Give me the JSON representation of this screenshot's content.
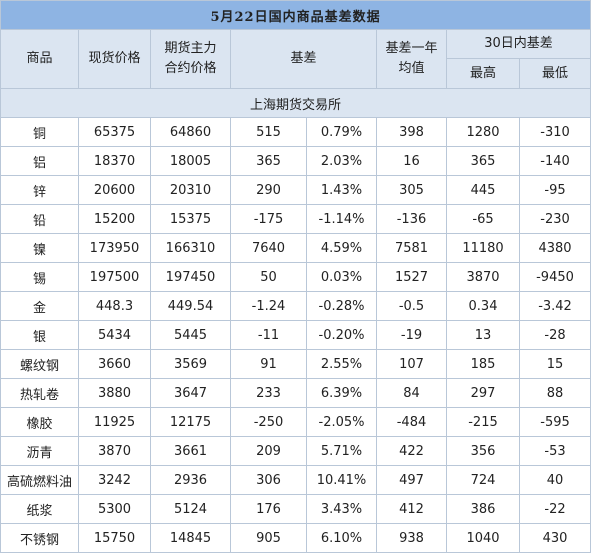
{
  "title": "5月22日国内商品基差数据",
  "headers": {
    "commodity": "商品",
    "spot_price": "现货价格",
    "futures_price_line1": "期货主力",
    "futures_price_line2": "合约价格",
    "basis": "基差",
    "basis_year_line1": "基差一年",
    "basis_year_line2": "均值",
    "range30": "30日内基差",
    "high": "最高",
    "low": "最低"
  },
  "exchange": "上海期货交易所",
  "colors": {
    "title_bg": "#8eb4e3",
    "header_bg": "#dbe5f1",
    "positive": "#e0443e",
    "negative": "#6cbe3c"
  },
  "rows": [
    {
      "name": "铜",
      "spot": "65375",
      "futures": "64860",
      "basis": "515",
      "basis_pct": "0.79%",
      "year_avg": "398",
      "high": "1280",
      "low": "-310",
      "sign": "pos"
    },
    {
      "name": "铝",
      "spot": "18370",
      "futures": "18005",
      "basis": "365",
      "basis_pct": "2.03%",
      "year_avg": "16",
      "high": "365",
      "low": "-140",
      "sign": "pos"
    },
    {
      "name": "锌",
      "spot": "20600",
      "futures": "20310",
      "basis": "290",
      "basis_pct": "1.43%",
      "year_avg": "305",
      "high": "445",
      "low": "-95",
      "sign": "pos"
    },
    {
      "name": "铅",
      "spot": "15200",
      "futures": "15375",
      "basis": "-175",
      "basis_pct": "-1.14%",
      "year_avg": "-136",
      "high": "-65",
      "low": "-230",
      "sign": "neg"
    },
    {
      "name": "镍",
      "spot": "173950",
      "futures": "166310",
      "basis": "7640",
      "basis_pct": "4.59%",
      "year_avg": "7581",
      "high": "11180",
      "low": "4380",
      "sign": "pos"
    },
    {
      "name": "锡",
      "spot": "197500",
      "futures": "197450",
      "basis": "50",
      "basis_pct": "0.03%",
      "year_avg": "1527",
      "high": "3870",
      "low": "-9450",
      "sign": "pos"
    },
    {
      "name": "金",
      "spot": "448.3",
      "futures": "449.54",
      "basis": "-1.24",
      "basis_pct": "-0.28%",
      "year_avg": "-0.5",
      "high": "0.34",
      "low": "-3.42",
      "sign": "neg"
    },
    {
      "name": "银",
      "spot": "5434",
      "futures": "5445",
      "basis": "-11",
      "basis_pct": "-0.20%",
      "year_avg": "-19",
      "high": "13",
      "low": "-28",
      "sign": "neg"
    },
    {
      "name": "螺纹钢",
      "spot": "3660",
      "futures": "3569",
      "basis": "91",
      "basis_pct": "2.55%",
      "year_avg": "107",
      "high": "185",
      "low": "15",
      "sign": "pos"
    },
    {
      "name": "热轧卷",
      "spot": "3880",
      "futures": "3647",
      "basis": "233",
      "basis_pct": "6.39%",
      "year_avg": "84",
      "high": "297",
      "low": "88",
      "sign": "pos"
    },
    {
      "name": "橡胶",
      "spot": "11925",
      "futures": "12175",
      "basis": "-250",
      "basis_pct": "-2.05%",
      "year_avg": "-484",
      "high": "-215",
      "low": "-595",
      "sign": "neg"
    },
    {
      "name": "沥青",
      "spot": "3870",
      "futures": "3661",
      "basis": "209",
      "basis_pct": "5.71%",
      "year_avg": "422",
      "high": "356",
      "low": "-53",
      "sign": "pos"
    },
    {
      "name": "高硫燃料油",
      "spot": "3242",
      "futures": "2936",
      "basis": "306",
      "basis_pct": "10.41%",
      "year_avg": "497",
      "high": "724",
      "low": "40",
      "sign": "pos"
    },
    {
      "name": "纸浆",
      "spot": "5300",
      "futures": "5124",
      "basis": "176",
      "basis_pct": "3.43%",
      "year_avg": "412",
      "high": "386",
      "low": "-22",
      "sign": "pos"
    },
    {
      "name": "不锈钢",
      "spot": "15750",
      "futures": "14845",
      "basis": "905",
      "basis_pct": "6.10%",
      "year_avg": "938",
      "high": "1040",
      "low": "430",
      "sign": "pos"
    }
  ]
}
